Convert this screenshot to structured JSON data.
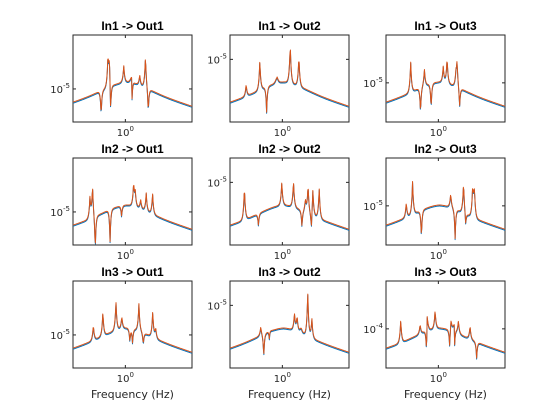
{
  "chart_data": {
    "type": "line",
    "layout": "3x3 grid",
    "x_scale": "log",
    "y_scale": "log",
    "xlabel": "Frequency (Hz)",
    "x_tick_label": "10^0",
    "colors": {
      "series_1": "#0072bd",
      "series_2": "#d95319"
    },
    "grid": false,
    "panels": [
      {
        "title": "In1 -> Out1",
        "y_tick_label": "10^-5",
        "show_xlabel": false
      },
      {
        "title": "In1 -> Out2",
        "y_tick_label": "10^-5",
        "show_xlabel": false
      },
      {
        "title": "In1 -> Out3",
        "y_tick_label": "10^-5",
        "show_xlabel": false
      },
      {
        "title": "In2 -> Out1",
        "y_tick_label": "10^-5",
        "show_xlabel": false
      },
      {
        "title": "In2 -> Out2",
        "y_tick_label": "10^-5",
        "show_xlabel": false
      },
      {
        "title": "In2 -> Out3",
        "y_tick_label": "10^-5",
        "show_xlabel": false
      },
      {
        "title": "In3 -> Out1",
        "y_tick_label": "10^-5",
        "show_xlabel": true
      },
      {
        "title": "In3 -> Out2",
        "y_tick_label": "10^-5",
        "show_xlabel": true
      },
      {
        "title": "In3 -> Out3",
        "y_tick_label": "10^-4",
        "show_xlabel": true
      }
    ]
  }
}
